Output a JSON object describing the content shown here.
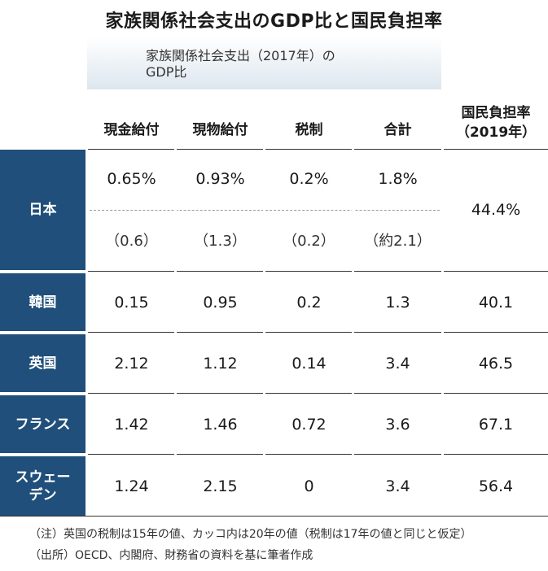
{
  "title": "家族関係社会支出のGDP比と国民負担率",
  "subheader": {
    "line1": "家族関係社会支出（2017年）の",
    "line2": "GDP比"
  },
  "columns": {
    "cash": "現金給付",
    "inkind": "現物給付",
    "tax": "税制",
    "total": "合計",
    "burden_line1": "国民負担率",
    "burden_line2": "（2019年）"
  },
  "rows": [
    {
      "country": "日本",
      "cash": "0.65%",
      "inkind": "0.93%",
      "tax": "0.2%",
      "total": "1.8%",
      "burden": "44.4%",
      "alt": {
        "cash": "（0.6）",
        "inkind": "（1.3）",
        "tax": "（0.2）",
        "total": "（約2.1）"
      }
    },
    {
      "country": "韓国",
      "cash": "0.15",
      "inkind": "0.95",
      "tax": "0.2",
      "total": "1.3",
      "burden": "40.1"
    },
    {
      "country": "英国",
      "cash": "2.12",
      "inkind": "1.12",
      "tax": "0.14",
      "total": "3.4",
      "burden": "46.5"
    },
    {
      "country": "フランス",
      "cash": "1.42",
      "inkind": "1.46",
      "tax": "0.72",
      "total": "3.6",
      "burden": "67.1"
    },
    {
      "country_line1": "スウェー",
      "country_line2": "デン",
      "cash": "1.24",
      "inkind": "2.15",
      "tax": "0",
      "total": "3.4",
      "burden": "56.4"
    }
  ],
  "notes": {
    "note1": "（注）英国の税制は15年の値、カッコ内は20年の値（税制は17年の値と同じと仮定）",
    "note2": "（出所）OECD、内閣府、財務省の資料を基に筆者作成"
  }
}
